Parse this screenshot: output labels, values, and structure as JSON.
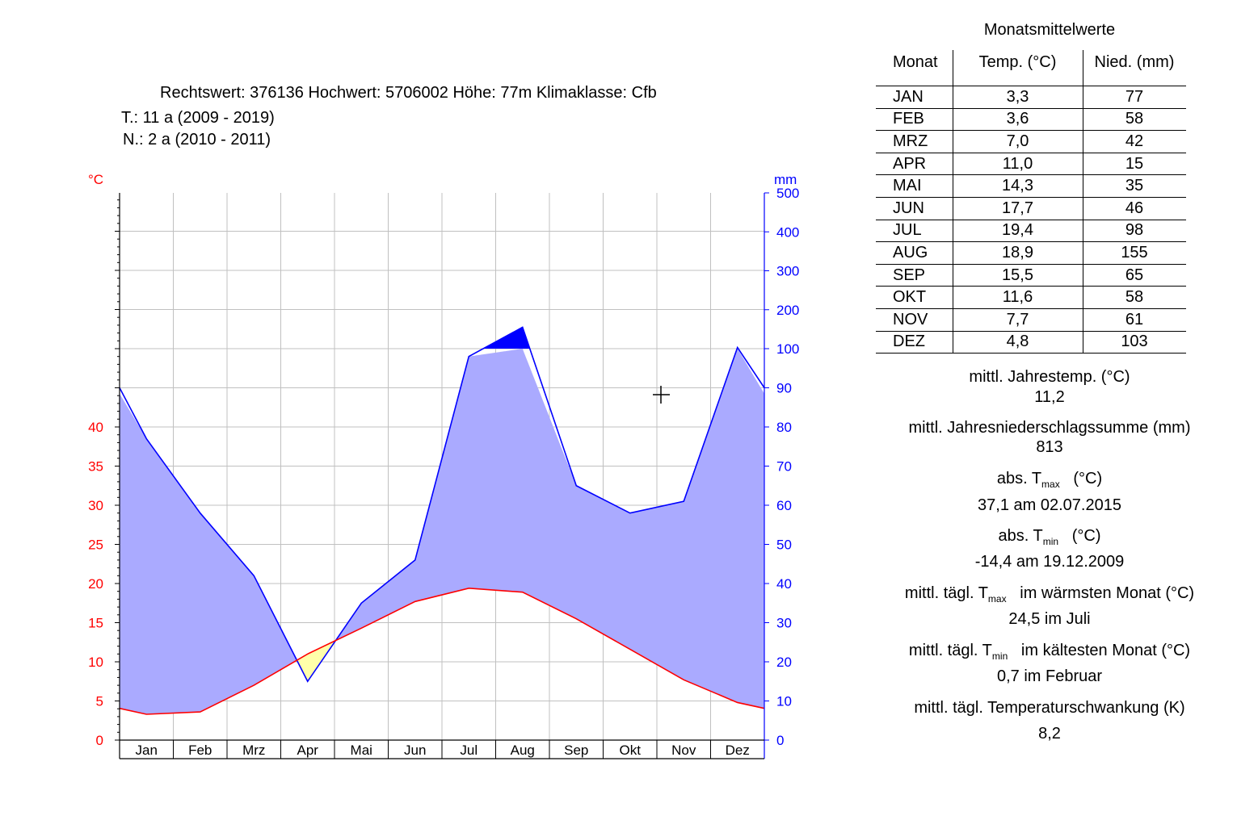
{
  "header": {
    "line1": "Rechtswert: 376136  Hochwert: 5706002  Höhe: 77m   Klimaklasse: Cfb",
    "line2": "T.: 11 a  (2009 - 2019)",
    "line3": "N.: 2 a  (2010 - 2011)"
  },
  "colors": {
    "temperature": "#ff0000",
    "precipitation": "#0000ff",
    "humid_fill": "#aaaaff",
    "arid_fill": "#ffffaa",
    "perhumid_fill": "#0000ff"
  },
  "chart_data": {
    "type": "area",
    "categories": [
      "Jan",
      "Feb",
      "Mrz",
      "Apr",
      "Mai",
      "Jun",
      "Jul",
      "Aug",
      "Sep",
      "Okt",
      "Nov",
      "Dez"
    ],
    "series": [
      {
        "axis": "left",
        "values": [
          3.3,
          3.6,
          7.0,
          11.0,
          14.3,
          17.7,
          19.4,
          18.9,
          15.5,
          11.6,
          7.7,
          4.8
        ]
      },
      {
        "axis": "right",
        "values": [
          77,
          58,
          42,
          15,
          35,
          46,
          98,
          155,
          65,
          58,
          61,
          103
        ]
      }
    ],
    "left_axis": {
      "unit": "°C",
      "ticks": [
        "0",
        "5",
        "10",
        "15",
        "20",
        "25",
        "30",
        "35",
        "40"
      ],
      "ylim": [
        0,
        70
      ]
    },
    "right_axis": {
      "unit": "mm",
      "ticks": [
        "0",
        "10",
        "20",
        "30",
        "40",
        "50",
        "60",
        "70",
        "80",
        "90",
        "100",
        "200",
        "300",
        "400",
        "500"
      ],
      "ylim": [
        0,
        500
      ],
      "scale_break": 100
    },
    "grid": true,
    "cursor_marker": "crosshair"
  },
  "table": {
    "title": "Monatsmittelwerte",
    "headers": [
      "Monat",
      "Temp. (°C)",
      "Nied. (mm)"
    ],
    "rows": [
      [
        "JAN",
        "3,3",
        "77"
      ],
      [
        "FEB",
        "3,6",
        "58"
      ],
      [
        "MRZ",
        "7,0",
        "42"
      ],
      [
        "APR",
        "11,0",
        "15"
      ],
      [
        "MAI",
        "14,3",
        "35"
      ],
      [
        "JUN",
        "17,7",
        "46"
      ],
      [
        "JUL",
        "19,4",
        "98"
      ],
      [
        "AUG",
        "18,9",
        "155"
      ],
      [
        "SEP",
        "15,5",
        "65"
      ],
      [
        "OKT",
        "11,6",
        "58"
      ],
      [
        "NOV",
        "7,7",
        "61"
      ],
      [
        "DEZ",
        "4,8",
        "103"
      ]
    ]
  },
  "stats": {
    "mean_temp_label": "mittl. Jahrestemp. (°C)",
    "mean_temp_value": "11,2",
    "precip_sum_label": "mittl. Jahresniederschlagssumme (mm)",
    "precip_sum_value": "813",
    "abs_tmax_label_pre": "abs. T",
    "abs_tmax_sub": "max",
    "abs_tmax_label_post": "(°C)",
    "abs_tmax_value": "37,1 am 02.07.2015",
    "abs_tmin_label_pre": "abs. T",
    "abs_tmin_sub": "min",
    "abs_tmin_label_post": "(°C)",
    "abs_tmin_value": "-14,4 am 19.12.2009",
    "warm_tmax_label_pre": "mittl. tägl. T",
    "warm_tmax_sub": "max",
    "warm_tmax_label_post": "im wärmsten Monat (°C)",
    "warm_tmax_value": "24,5 im Juli",
    "cold_tmin_label_pre": "mittl. tägl. T",
    "cold_tmin_sub": "min",
    "cold_tmin_label_post": "im kältesten Monat (°C)",
    "cold_tmin_value": "0,7 im Februar",
    "swing_label": "mittl. tägl. Temperaturschwankung (K)",
    "swing_value": "8,2"
  }
}
